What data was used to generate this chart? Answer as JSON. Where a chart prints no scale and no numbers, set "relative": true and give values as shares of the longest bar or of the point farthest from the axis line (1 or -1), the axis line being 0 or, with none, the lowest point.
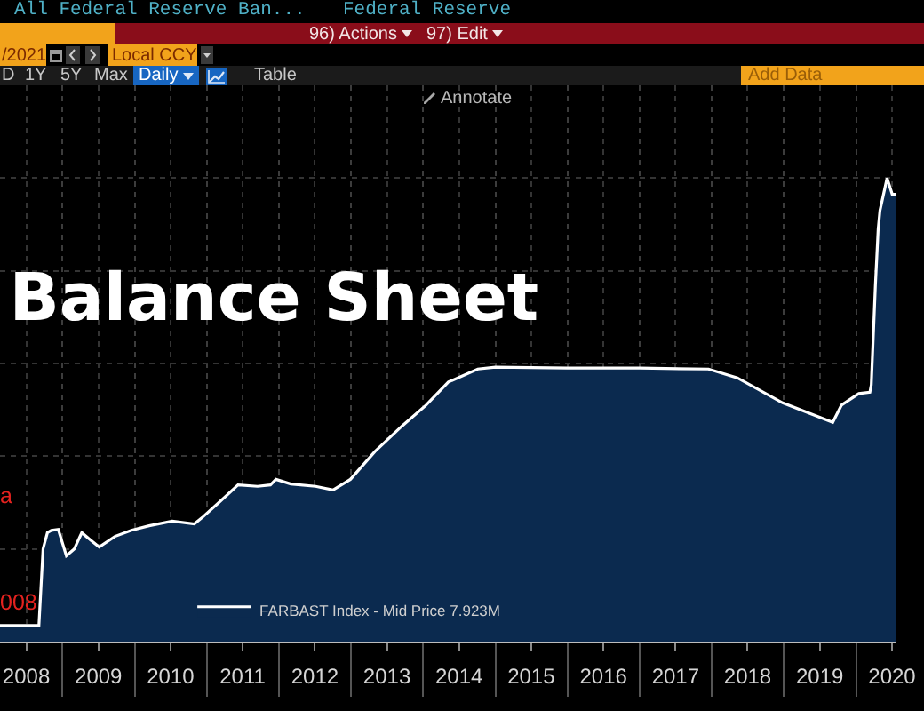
{
  "chart_data": {
    "type": "area",
    "title": "Balance Sheet",
    "subtitle": "All Federal Reserve Ban...",
    "annotations": [
      "Federal Reserve",
      "96) Actions",
      "97) Edit",
      "/2021",
      "Local CCY",
      "D",
      "1Y",
      "5Y",
      "Max",
      "Daily",
      "Table",
      "Add Data",
      "Annotate",
      "a",
      "008"
    ],
    "x": [
      "2008-02-19",
      "2008-05-01",
      "2008-09-03",
      "2008-09-24",
      "2008-10-16",
      "2008-11-05",
      "2008-12-10",
      "2009-01-20",
      "2009-03-01",
      "2009-04-08",
      "2009-05-20",
      "2009-07-05",
      "2009-09-23",
      "2009-12-15",
      "2010-03-15",
      "2010-07-10",
      "2010-10-30",
      "2010-12-15",
      "2011-03-03",
      "2011-06-08",
      "2011-09-15",
      "2011-11-19",
      "2011-12-17",
      "2012-03-01",
      "2012-07-05",
      "2012-10-01",
      "2012-12-28",
      "2013-05-01",
      "2013-09-15",
      "2014-01-15",
      "2014-05-08",
      "2014-10-04",
      "2015-01-01",
      "2016-01-01",
      "2017-01-01",
      "2017-12-15",
      "2018-05-10",
      "2018-12-25",
      "2019-09-05",
      "2019-10-19",
      "2020-01-15",
      "2020-03-11",
      "2020-03-18",
      "2020-04-08",
      "2020-04-22",
      "2020-05-01",
      "2020-06-06",
      "2020-07-02",
      "2020-07-19"
    ],
    "relative": true,
    "series": [
      {
        "name": "FARBAST Index - Mid Price 7.923M",
        "color": "#0b2a4f",
        "values": [
          0.035,
          0.035,
          0.035,
          0.2,
          0.235,
          0.24,
          0.242,
          0.185,
          0.2,
          0.235,
          0.22,
          0.204,
          0.227,
          0.24,
          0.25,
          0.26,
          0.254,
          0.27,
          0.3,
          0.338,
          0.335,
          0.338,
          0.35,
          0.34,
          0.335,
          0.327,
          0.35,
          0.41,
          0.465,
          0.51,
          0.56,
          0.588,
          0.592,
          0.59,
          0.59,
          0.588,
          0.569,
          0.515,
          0.473,
          0.51,
          0.535,
          0.538,
          0.554,
          0.77,
          0.89,
          0.93,
          1,
          0.965,
          0.965
        ]
      }
    ],
    "xlim": [
      "2008-02-19",
      "2020-07-19"
    ],
    "xticks": [
      {
        "value": "2008-07-01",
        "label": "2008"
      },
      {
        "value": "2009-01-01",
        "label": null
      },
      {
        "value": "2009-07-01",
        "label": "2009"
      },
      {
        "value": "2010-01-01",
        "label": null
      },
      {
        "value": "2010-07-01",
        "label": "2010"
      },
      {
        "value": "2011-01-01",
        "label": null
      },
      {
        "value": "2011-07-01",
        "label": "2011"
      },
      {
        "value": "2012-01-01",
        "label": null
      },
      {
        "value": "2012-07-01",
        "label": "2012"
      },
      {
        "value": "2013-01-01",
        "label": null
      },
      {
        "value": "2013-07-01",
        "label": "2013"
      },
      {
        "value": "2014-01-01",
        "label": null
      },
      {
        "value": "2014-07-01",
        "label": "2014"
      },
      {
        "value": "2015-01-01",
        "label": null
      },
      {
        "value": "2015-07-01",
        "label": "2015"
      },
      {
        "value": "2016-01-01",
        "label": null
      },
      {
        "value": "2016-07-01",
        "label": "2016"
      },
      {
        "value": "2017-01-01",
        "label": null
      },
      {
        "value": "2017-07-01",
        "label": "2017"
      },
      {
        "value": "2018-01-01",
        "label": null
      },
      {
        "value": "2018-07-01",
        "label": "2018"
      },
      {
        "value": "2019-01-01",
        "label": null
      },
      {
        "value": "2019-07-01",
        "label": "2019"
      },
      {
        "value": "2020-01-01",
        "label": null
      },
      {
        "value": "2020-07-01",
        "label": "2020"
      }
    ],
    "grid": true,
    "legend": "bottom",
    "tick_labels": "x"
  }
}
